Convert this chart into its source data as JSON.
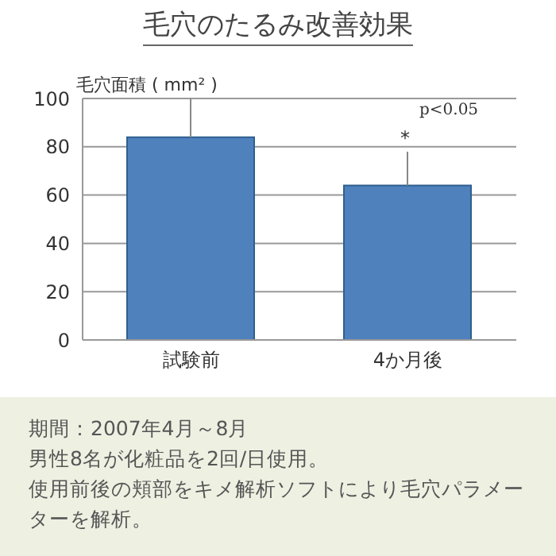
{
  "chart_data": {
    "type": "bar",
    "title": "毛穴のたるみ改善効果",
    "ylabel": "毛穴面積 ( mm² )",
    "categories": [
      "試験前",
      "4か月後"
    ],
    "values": [
      84,
      64
    ],
    "errors": [
      [
        84,
        100
      ],
      [
        64,
        78
      ]
    ],
    "color": "#4f81bd",
    "ylim": [
      0,
      100
    ],
    "yticks": [
      0,
      20,
      40,
      60,
      80,
      100
    ],
    "grid": "y",
    "annotations": [
      "*",
      "p<0.05",
      "期間：2007年4月～8月",
      "男性8名が化粧品を2回/日使用。",
      "使用前後の頬部をキメ解析ソフトにより毛穴パラメーターを解析。"
    ]
  }
}
